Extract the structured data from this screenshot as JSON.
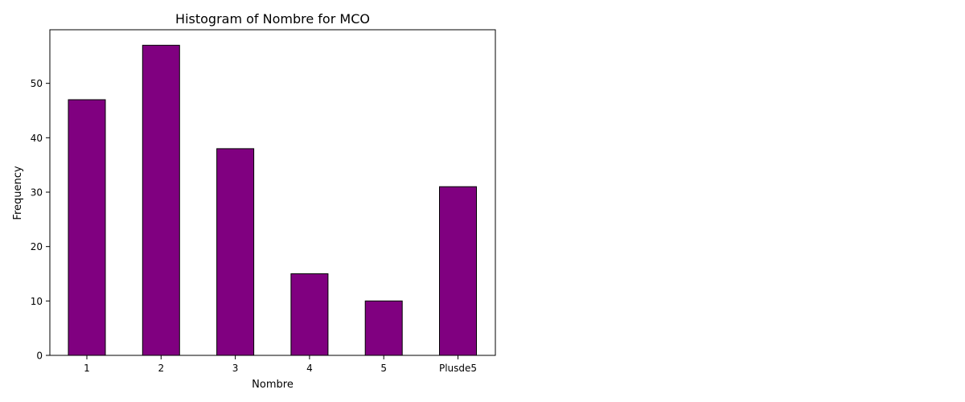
{
  "chart_data": {
    "type": "bar",
    "title": "Histogram of Nombre for MCO",
    "xlabel": "Nombre",
    "ylabel": "Frequency",
    "categories": [
      "1",
      "2",
      "3",
      "4",
      "5",
      "Plusde5"
    ],
    "values": [
      47,
      57,
      38,
      15,
      10,
      31
    ],
    "ylim": [
      0,
      59.85
    ],
    "yticks": [
      0,
      10,
      20,
      30,
      40,
      50
    ],
    "grid": false,
    "bar_color": "#800080",
    "bar_edge_color": "#000000"
  }
}
